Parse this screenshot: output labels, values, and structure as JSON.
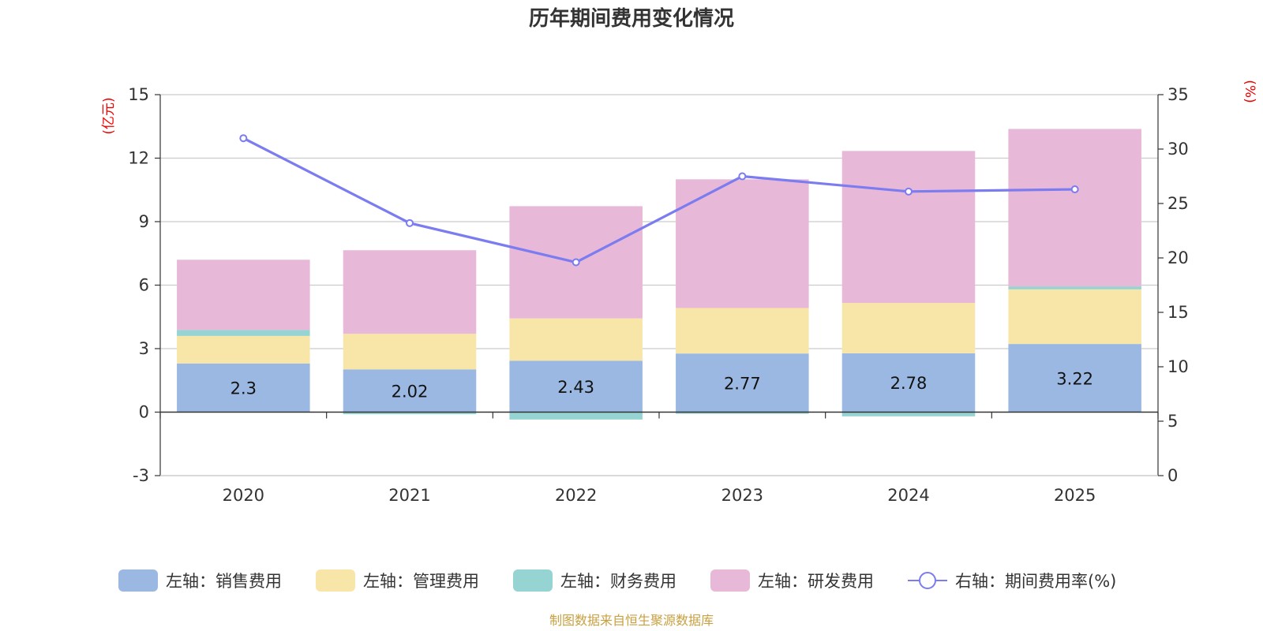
{
  "chart_data": {
    "type": "bar",
    "title": "历年期间费用变化情况",
    "categories": [
      "2020",
      "2021",
      "2022",
      "2023",
      "2024",
      "2025"
    ],
    "left_axis": {
      "unit": "(亿元)",
      "ylim": [
        -3,
        15
      ],
      "ticks": [
        -3,
        0,
        3,
        6,
        9,
        12,
        15
      ]
    },
    "right_axis": {
      "unit": "(%)",
      "ylim": [
        0,
        35
      ],
      "ticks": [
        0,
        5,
        10,
        15,
        20,
        25,
        30,
        35
      ]
    },
    "series": [
      {
        "name": "左轴：销售费用",
        "axis": "left",
        "kind": "stacked-bar",
        "color": "#9bb8e2",
        "values": [
          2.3,
          2.02,
          2.43,
          2.77,
          2.78,
          3.22
        ],
        "labels": [
          "2.3",
          "2.02",
          "2.43",
          "2.77",
          "2.78",
          "3.22"
        ]
      },
      {
        "name": "左轴：管理费用",
        "axis": "left",
        "kind": "stacked-bar",
        "color": "#f8e6a8",
        "values": [
          1.3,
          1.68,
          2.0,
          2.15,
          2.38,
          2.58
        ]
      },
      {
        "name": "左轴：财务费用",
        "axis": "left",
        "kind": "stacked-bar",
        "color": "#96d4d4",
        "values": [
          0.28,
          -0.1,
          -0.35,
          -0.08,
          -0.2,
          0.14
        ]
      },
      {
        "name": "左轴：研发费用",
        "axis": "left",
        "kind": "stacked-bar",
        "color": "#e8b8d8",
        "values": [
          3.32,
          3.95,
          5.3,
          6.08,
          7.18,
          7.44
        ]
      },
      {
        "name": "右轴：期间费用率(%)",
        "axis": "right",
        "kind": "line",
        "color": "#7b7cf0",
        "values": [
          31.0,
          23.2,
          19.6,
          27.5,
          26.1,
          26.3
        ]
      }
    ]
  },
  "source": "制图数据来自恒生聚源数据库"
}
